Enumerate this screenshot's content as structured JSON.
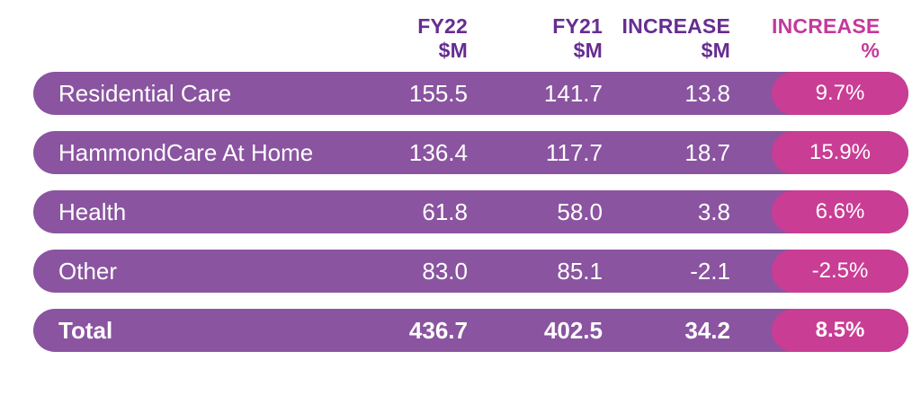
{
  "table": {
    "header": {
      "fy22": {
        "line1": "FY22",
        "line2": "$M"
      },
      "fy21": {
        "line1": "FY21",
        "line2": "$M"
      },
      "increase": {
        "line1": "INCREASE",
        "line2": "$M"
      },
      "pct": {
        "line1": "INCREASE",
        "line2": "%"
      }
    },
    "rows": [
      {
        "label": "Residential Care",
        "fy22": "155.5",
        "fy21": "141.7",
        "increase": "13.8",
        "increase_pct": "9.7%"
      },
      {
        "label": "HammondCare At Home",
        "fy22": "136.4",
        "fy21": "117.7",
        "increase": "18.7",
        "increase_pct": "15.9%"
      },
      {
        "label": "Health",
        "fy22": "61.8",
        "fy21": "58.0",
        "increase": "3.8",
        "increase_pct": "6.6%"
      },
      {
        "label": "Other",
        "fy22": "83.0",
        "fy21": "85.1",
        "increase": "-2.1",
        "increase_pct": "-2.5%"
      },
      {
        "label": "Total",
        "fy22": "436.7",
        "fy21": "402.5",
        "increase": "34.2",
        "increase_pct": "8.5%"
      }
    ]
  },
  "colors": {
    "row_purple": "#8A54A0",
    "pill_pink": "#C93D94",
    "header_purple": "#662D91",
    "header_pink": "#C4399B",
    "row_text": "#FFFFFF",
    "background": "#FFFFFF"
  },
  "chart_data": {
    "type": "table",
    "title": "",
    "columns": [
      "",
      "FY22 $M",
      "FY21 $M",
      "INCREASE $M",
      "INCREASE %"
    ],
    "rows": [
      [
        "Residential Care",
        155.5,
        141.7,
        13.8,
        "9.7%"
      ],
      [
        "HammondCare At Home",
        136.4,
        117.7,
        18.7,
        "15.9%"
      ],
      [
        "Health",
        61.8,
        58.0,
        3.8,
        "6.6%"
      ],
      [
        "Other",
        83.0,
        85.1,
        -2.1,
        "-2.5%"
      ],
      [
        "Total",
        436.7,
        402.5,
        34.2,
        "8.5%"
      ]
    ]
  }
}
